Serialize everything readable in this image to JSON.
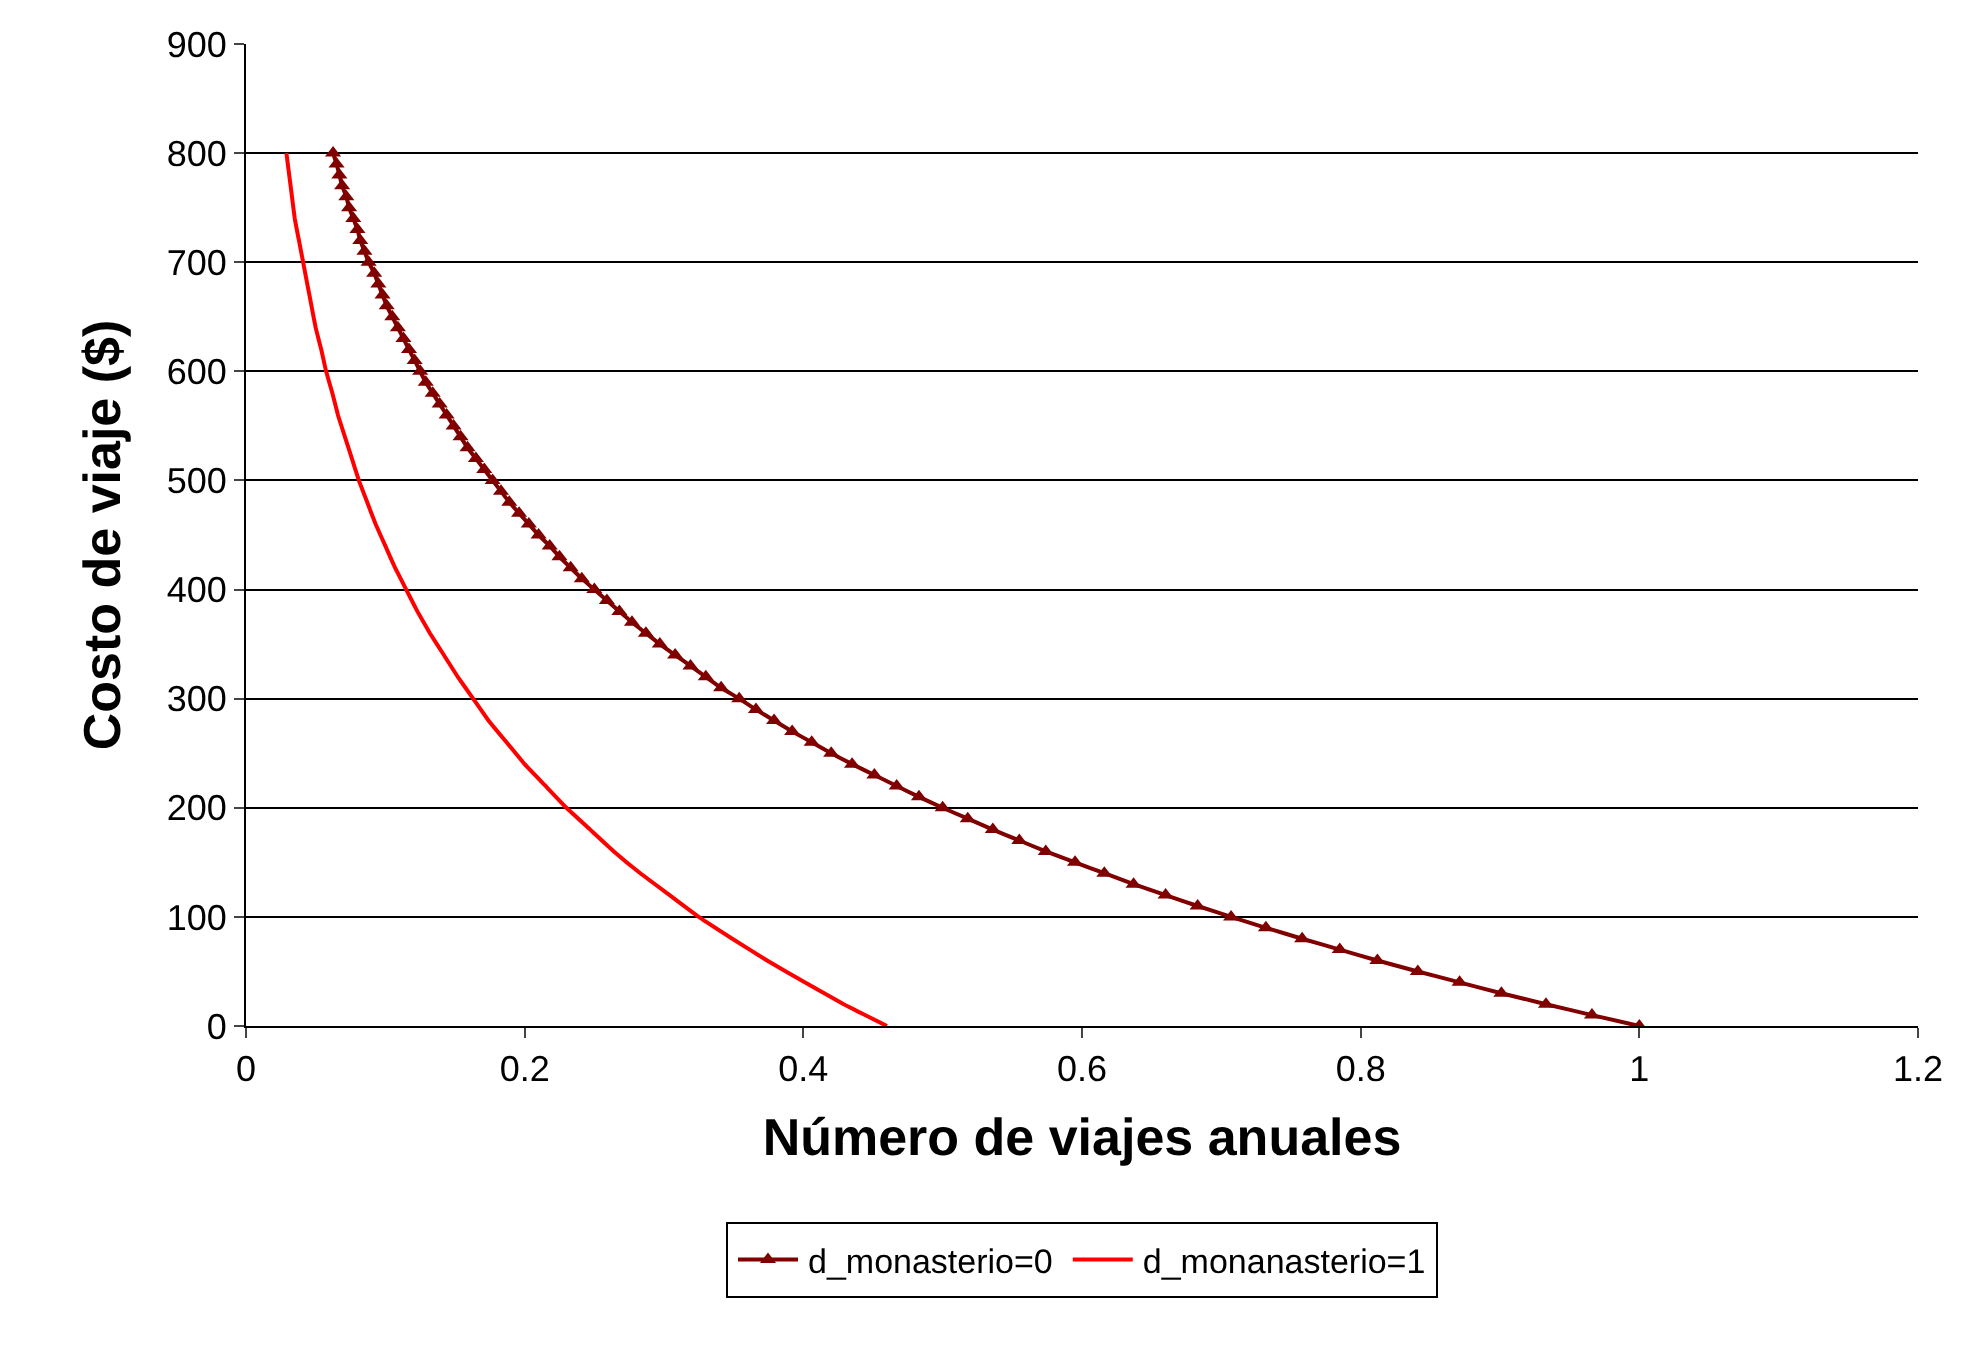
{
  "chart_data": {
    "type": "line",
    "xlabel": "Número de viajes anuales",
    "ylabel": "Costo de viaje ($)",
    "xlim": [
      0,
      1.2
    ],
    "xticks": [
      0,
      0.2,
      0.4,
      0.6,
      0.8,
      1,
      1.2
    ],
    "ylim": [
      0,
      900
    ],
    "yticks": [
      0,
      100,
      200,
      300,
      400,
      500,
      600,
      700,
      800,
      900
    ],
    "grid": "y",
    "legend": "bottom",
    "series": [
      {
        "name": "d_monasterio=0",
        "color": "#800000",
        "marker": "triangle",
        "x": [
          1,
          0.966,
          0.933,
          0.901,
          0.871,
          0.841,
          0.812,
          0.785,
          0.758,
          0.732,
          0.707,
          0.683,
          0.66,
          0.637,
          0.616,
          0.595,
          0.574,
          0.555,
          0.536,
          0.518,
          0.5,
          0.483,
          0.467,
          0.451,
          0.435,
          0.42,
          0.406,
          0.392,
          0.379,
          0.366,
          0.354,
          0.341,
          0.33,
          0.319,
          0.308,
          0.297,
          0.287,
          0.277,
          0.268,
          0.259,
          0.25,
          0.241,
          0.233,
          0.225,
          0.218,
          0.21,
          0.203,
          0.196,
          0.189,
          0.183,
          0.177,
          0.171,
          0.165,
          0.159,
          0.154,
          0.149,
          0.144,
          0.139,
          0.134,
          0.129,
          0.125,
          0.121,
          0.117,
          0.113,
          0.109,
          0.105,
          0.101,
          0.098,
          0.095,
          0.092,
          0.088,
          0.085,
          0.082,
          0.08,
          0.077,
          0.074,
          0.072,
          0.069,
          0.067,
          0.065,
          0.0625
        ],
        "values": [
          0,
          10,
          20,
          30,
          40,
          50,
          60,
          70,
          80,
          90,
          100,
          110,
          120,
          130,
          140,
          150,
          160,
          170,
          180,
          190,
          200,
          210,
          220,
          230,
          240,
          250,
          260,
          270,
          280,
          290,
          300,
          310,
          320,
          330,
          340,
          350,
          360,
          370,
          380,
          390,
          400,
          410,
          420,
          430,
          440,
          450,
          460,
          470,
          480,
          490,
          500,
          510,
          520,
          530,
          540,
          550,
          560,
          570,
          580,
          590,
          600,
          610,
          620,
          630,
          640,
          650,
          660,
          670,
          680,
          690,
          700,
          710,
          720,
          730,
          740,
          750,
          760,
          770,
          780,
          790,
          800
        ]
      },
      {
        "name": "d_monanasterio=1",
        "color": "#ff0000",
        "marker": "none",
        "x": [
          0.46,
          0.429,
          0.401,
          0.374,
          0.349,
          0.325,
          0.304,
          0.283,
          0.264,
          0.247,
          0.23,
          0.215,
          0.2,
          0.187,
          0.174,
          0.163,
          0.152,
          0.142,
          0.132,
          0.123,
          0.115,
          0.107,
          0.1,
          0.093,
          0.087,
          0.081,
          0.076,
          0.071,
          0.066,
          0.062,
          0.0575,
          0.054,
          0.05,
          0.047,
          0.044,
          0.041,
          0.038,
          0.035,
          0.033,
          0.031,
          0.029
        ],
        "values": [
          0,
          20,
          40,
          60,
          80,
          100,
          120,
          140,
          160,
          180,
          200,
          220,
          240,
          260,
          280,
          300,
          320,
          340,
          360,
          380,
          400,
          420,
          440,
          460,
          480,
          500,
          520,
          540,
          560,
          580,
          600,
          620,
          640,
          660,
          680,
          700,
          720,
          740,
          760,
          780,
          800
        ]
      }
    ]
  }
}
